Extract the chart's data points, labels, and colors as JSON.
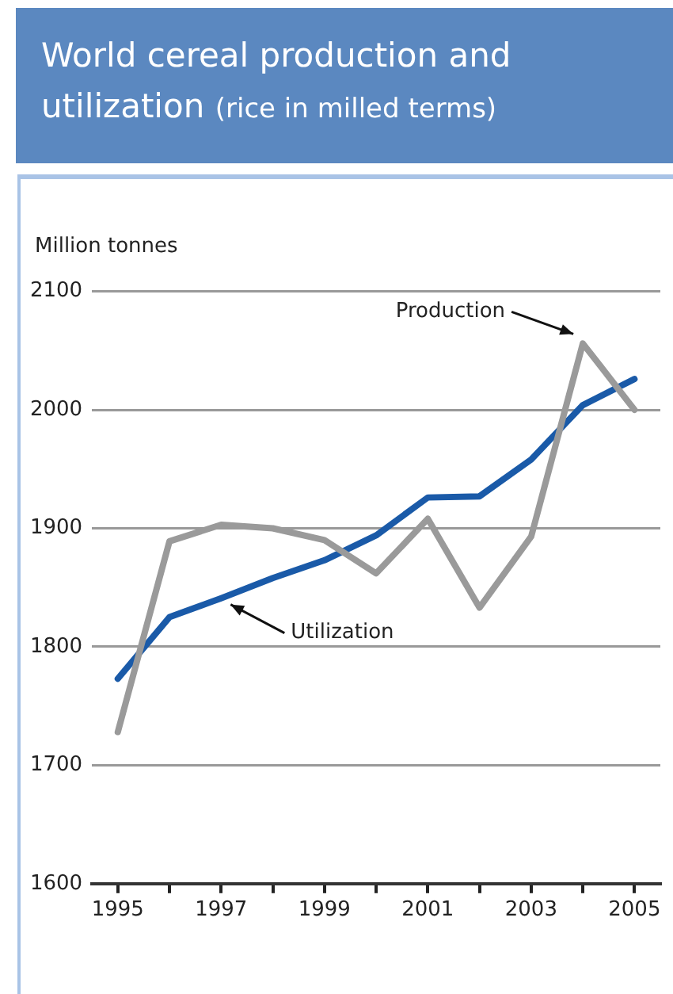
{
  "chart_data": {
    "type": "line",
    "title": "World cereal production and utilization",
    "subtitle": "(rice in milled terms)",
    "ylabel": "Million tonnes",
    "categories": [
      "1995",
      null,
      "1997",
      null,
      "1999",
      null,
      "2001",
      null,
      "2003",
      null,
      "2005"
    ],
    "series": [
      {
        "name": "Production",
        "color": "#9a9a9a",
        "values": [
          1728,
          1889,
          1903,
          1900,
          1890,
          1862,
          1908,
          1833,
          1893,
          2056,
          2000
        ]
      },
      {
        "name": "Utilization",
        "color": "#1a5aa8",
        "values": [
          1773,
          1825,
          1841,
          1858,
          1873,
          1894,
          1926,
          1927,
          1958,
          2004,
          2026
        ]
      }
    ],
    "ylim": [
      1600,
      2100
    ],
    "yticks": [
      1600,
      1700,
      1800,
      1900,
      2000,
      2100
    ],
    "grid": "y",
    "legend": false,
    "marker": "none",
    "line_style": "solid"
  }
}
